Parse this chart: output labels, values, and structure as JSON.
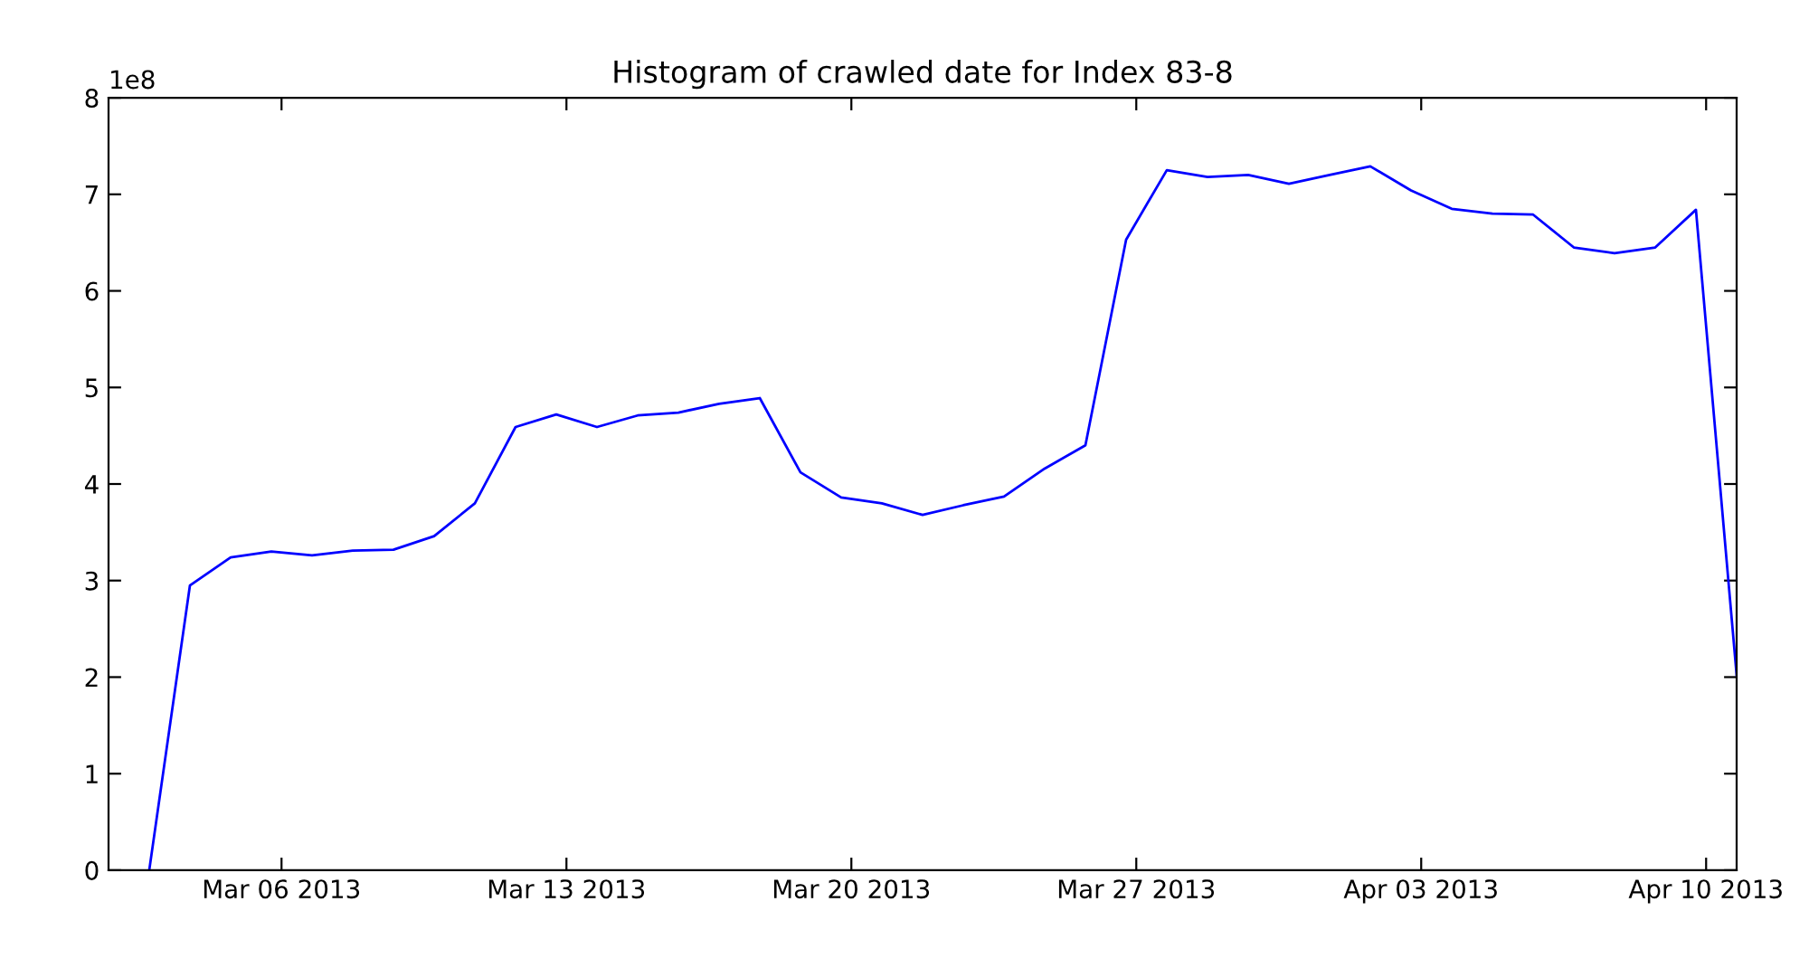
{
  "chart_data": {
    "type": "line",
    "title": "Histogram of crawled date for Index 83-8",
    "x": [
      "2013-03-02T18:00",
      "2013-03-03T18:00",
      "2013-03-04T18:00",
      "2013-03-05T18:00",
      "2013-03-06T18:00",
      "2013-03-07T18:00",
      "2013-03-08T18:00",
      "2013-03-09T18:00",
      "2013-03-10T18:00",
      "2013-03-11T18:00",
      "2013-03-12T18:00",
      "2013-03-13T18:00",
      "2013-03-14T18:00",
      "2013-03-15T18:00",
      "2013-03-16T18:00",
      "2013-03-17T18:00",
      "2013-03-18T18:00",
      "2013-03-19T18:00",
      "2013-03-20T18:00",
      "2013-03-21T18:00",
      "2013-03-22T18:00",
      "2013-03-23T18:00",
      "2013-03-24T18:00",
      "2013-03-25T18:00",
      "2013-03-26T18:00",
      "2013-03-27T18:00",
      "2013-03-28T18:00",
      "2013-03-29T18:00",
      "2013-03-30T18:00",
      "2013-03-31T18:00",
      "2013-04-01T18:00",
      "2013-04-02T18:00",
      "2013-04-03T18:00",
      "2013-04-04T18:00",
      "2013-04-05T18:00",
      "2013-04-06T18:00",
      "2013-04-07T18:00",
      "2013-04-08T18:00",
      "2013-04-09T18:00",
      "2013-04-10T18:00"
    ],
    "series": [
      {
        "color": "#0000ff",
        "values": [
          0,
          2.95,
          3.24,
          3.3,
          3.26,
          3.31,
          3.32,
          3.46,
          3.8,
          4.59,
          4.72,
          4.59,
          4.71,
          4.74,
          4.83,
          4.89,
          4.12,
          3.86,
          3.8,
          3.68,
          3.78,
          3.87,
          4.16,
          4.4,
          6.53,
          7.25,
          7.18,
          7.2,
          7.11,
          7.2,
          7.29,
          7.04,
          6.85,
          6.8,
          6.79,
          6.45,
          6.39,
          6.45,
          6.84,
          2.02
        ]
      }
    ],
    "xlim": [
      "2013-03-01T18:00",
      "2013-04-10T18:00"
    ],
    "xticks": [
      {
        "value": "2013-03-06",
        "label": "Mar 06 2013"
      },
      {
        "value": "2013-03-13",
        "label": "Mar 13 2013"
      },
      {
        "value": "2013-03-20",
        "label": "Mar 20 2013"
      },
      {
        "value": "2013-03-27",
        "label": "Mar 27 2013"
      },
      {
        "value": "2013-04-03",
        "label": "Apr 03 2013"
      },
      {
        "value": "2013-04-10",
        "label": "Apr 10 2013"
      }
    ],
    "ylim": [
      0,
      8
    ],
    "yticks": [
      0,
      1,
      2,
      3,
      4,
      5,
      6,
      7,
      8
    ],
    "annotations": [
      "1e8"
    ],
    "grid": false,
    "line_style": "solid",
    "marker": "none"
  }
}
